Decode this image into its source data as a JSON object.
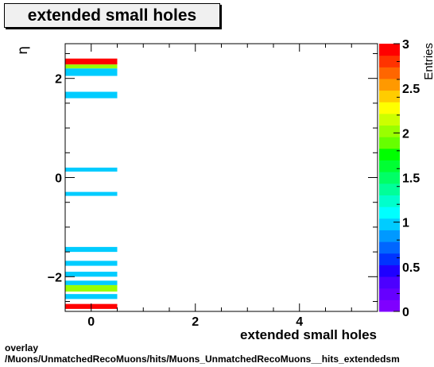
{
  "chart_data": {
    "type": "heatmap",
    "title": "extended small holes",
    "xlabel": "extended small holes",
    "ylabel": "η",
    "zlabel": "Entries",
    "xlim": [
      -0.5,
      5.5
    ],
    "ylim": [
      -2.7,
      2.7
    ],
    "zlim": [
      0,
      3
    ],
    "x_ticks": [
      0,
      2,
      4
    ],
    "y_ticks": [
      -2,
      0,
      2
    ],
    "z_ticks": [
      0,
      0.5,
      1,
      1.5,
      2,
      2.5,
      3
    ],
    "x_bin": [
      -0.5,
      0.5
    ],
    "cells": [
      {
        "eta": [
          2.28,
          2.4
        ],
        "value": 3
      },
      {
        "eta": [
          2.2,
          2.28
        ],
        "value": 2
      },
      {
        "eta": [
          2.05,
          2.2
        ],
        "value": 1
      },
      {
        "eta": [
          1.6,
          1.73
        ],
        "value": 1
      },
      {
        "eta": [
          0.12,
          0.2
        ],
        "value": 1
      },
      {
        "eta": [
          -0.37,
          -0.29
        ],
        "value": 1
      },
      {
        "eta": [
          -1.5,
          -1.4
        ],
        "value": 1
      },
      {
        "eta": [
          -1.78,
          -1.68
        ],
        "value": 1
      },
      {
        "eta": [
          -2.0,
          -1.9
        ],
        "value": 1
      },
      {
        "eta": [
          -2.17,
          -2.08
        ],
        "value": 1
      },
      {
        "eta": [
          -2.3,
          -2.17
        ],
        "value": 2
      },
      {
        "eta": [
          -2.45,
          -2.35
        ],
        "value": 1
      },
      {
        "eta": [
          -2.65,
          -2.55
        ],
        "value": 3
      }
    ]
  },
  "footer": {
    "line1": "overlay",
    "line2": "/Muons/UnmatchedRecoMuons/hits/Muons_UnmatchedRecoMuons__hits_extendedsm"
  }
}
